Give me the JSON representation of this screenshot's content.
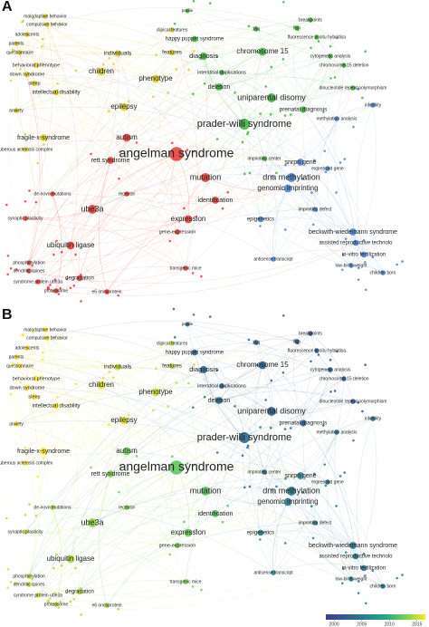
{
  "panels": [
    {
      "letter": "A"
    },
    {
      "letter": "B"
    }
  ],
  "nodes": [
    {
      "label": "profile"
    },
    {
      "label": "clinical features"
    },
    {
      "label": "happy puppet syndrome"
    },
    {
      "label": "maladaptive behavior"
    },
    {
      "label": "compulsive behavior"
    },
    {
      "label": "adolescents"
    },
    {
      "label": "parents"
    },
    {
      "label": "questionnaire"
    },
    {
      "label": "behavioral phenotype"
    },
    {
      "label": "down syndrome"
    },
    {
      "label": "sleep"
    },
    {
      "label": "intellectual disability"
    },
    {
      "label": "anxiety"
    },
    {
      "label": "children"
    },
    {
      "label": "individuals"
    },
    {
      "label": "features"
    },
    {
      "label": "phenotype"
    },
    {
      "label": "epilepsy"
    },
    {
      "label": "diagnosis"
    },
    {
      "label": "15q"
    },
    {
      "label": "fish"
    },
    {
      "label": "breakpoints"
    },
    {
      "label": "fluorescence in situ hybridisa"
    },
    {
      "label": "chromosome 15"
    },
    {
      "label": "cytogenetic analysis"
    },
    {
      "label": "chromosome-15 deletion"
    },
    {
      "label": "interstitial duplications"
    },
    {
      "label": "deletion"
    },
    {
      "label": "dinucleotide repeat polymorphism"
    },
    {
      "label": "uniparental disomy"
    },
    {
      "label": "prenatal diagnosis"
    },
    {
      "label": "methylation analysis"
    },
    {
      "label": "infertility"
    },
    {
      "label": "prader-willi syndrome"
    },
    {
      "label": "angelman syndrome"
    },
    {
      "label": "fragile-x-syndrome"
    },
    {
      "label": "autism"
    },
    {
      "label": "tuberous sclerosis complex"
    },
    {
      "label": "rett syndrome"
    },
    {
      "label": "mutation"
    },
    {
      "label": "imprinting center"
    },
    {
      "label": "snrpn gene"
    },
    {
      "label": "expressed gene"
    },
    {
      "label": "dna methylation"
    },
    {
      "label": "genomic imprinting"
    },
    {
      "label": "identification"
    },
    {
      "label": "imprinting defect"
    },
    {
      "label": "ube3a"
    },
    {
      "label": "synaptic plasticity"
    },
    {
      "label": "expression"
    },
    {
      "label": "epigenetics"
    },
    {
      "label": "gene-expression"
    },
    {
      "label": "beckwith-wiedemann syndrome"
    },
    {
      "label": "assisted reproductive technolo"
    },
    {
      "label": "in-vitro fertilization"
    },
    {
      "label": "ubiquitin ligase"
    },
    {
      "label": "antisense transcript"
    },
    {
      "label": "low-birth-weight"
    },
    {
      "label": "transgenic mice"
    },
    {
      "label": "phosphorylation"
    },
    {
      "label": "dendritic spines"
    },
    {
      "label": "children born"
    },
    {
      "label": "syndrome protein ube3a"
    },
    {
      "label": "degradation"
    },
    {
      "label": "proteasome"
    },
    {
      "label": "e6 oncoprotein"
    },
    {
      "label": "receptor"
    },
    {
      "label": "de-novo mutations"
    }
  ],
  "colorbar": {
    "lim": [
      1998.5,
      2016.5
    ],
    "ticks": [
      2000,
      2005,
      2010,
      2015
    ]
  }
}
